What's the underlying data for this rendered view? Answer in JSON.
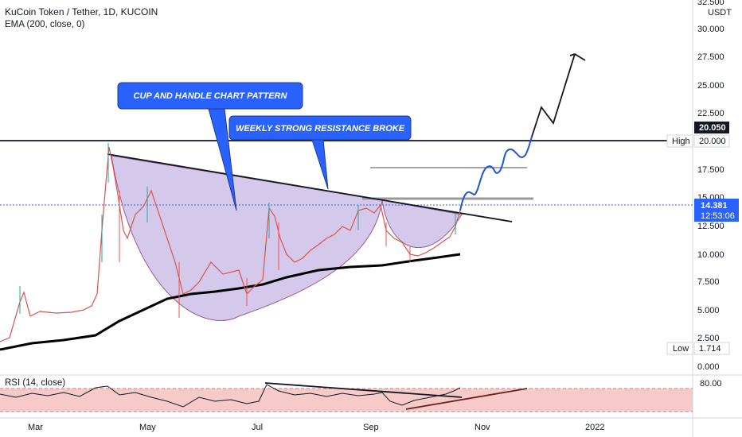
{
  "header": {
    "symbol_line": "KuCoin Token / Tether, 1D, KUCOIN",
    "indicator_line": "EMA (200, close, 0)"
  },
  "rsi_label": "RSI (14, close)",
  "annotations": {
    "cup_handle": "CUP AND HANDLE CHART PATTERN",
    "resistance": "WEEKLY STRONG RESISTANCE BROKE"
  },
  "price_scale": {
    "currency": "USDT",
    "top_value": "32.500",
    "ticks": [
      "30.000",
      "27.500",
      "25.000",
      "22.500",
      "17.500",
      "15.000",
      "12.500",
      "10.000",
      "7.500",
      "5.000",
      "2.500",
      "0.000"
    ],
    "rsi_ticks": [
      "80.00"
    ]
  },
  "tags": {
    "high_label": "High",
    "high_value": "20.000",
    "resistance_value": "20.050",
    "current_price": "14.381",
    "countdown": "12:53:06",
    "low_label": "Low",
    "low_value": "1.714"
  },
  "time_axis": [
    "Mar",
    "May",
    "Jul",
    "Sep",
    "Nov",
    "2022"
  ],
  "colors": {
    "up": "#26a69a",
    "down": "#ef5350",
    "cup_fill": "#b39ddb",
    "callout_bg": "#2962ff",
    "projection": "#1e53e5",
    "rsi_band": "#f2b8b5",
    "current_price_bg": "#2962ff"
  },
  "chart_data": {
    "type": "line",
    "title": "KuCoin Token / Tether, 1D, KUCOIN",
    "xlabel": "",
    "ylabel": "USDT",
    "ylim": [
      0,
      32.5
    ],
    "x_ticks": [
      "Mar",
      "May",
      "Jul",
      "Sep",
      "Nov",
      "2022"
    ],
    "series": [
      {
        "name": "KuCoin Token / Tether",
        "x": [
          "2021-02-12",
          "2021-02-20",
          "2021-03-01",
          "2021-03-10",
          "2021-03-20",
          "2021-03-30",
          "2021-04-05",
          "2021-04-08",
          "2021-04-15",
          "2021-04-25",
          "2021-05-05",
          "2021-05-12",
          "2021-05-19",
          "2021-05-25",
          "2021-06-05",
          "2021-06-15",
          "2021-06-22",
          "2021-06-30",
          "2021-07-05",
          "2021-07-08",
          "2021-07-12",
          "2021-07-20",
          "2021-08-01",
          "2021-08-15",
          "2021-08-25",
          "2021-09-05",
          "2021-09-08",
          "2021-09-15",
          "2021-09-20",
          "2021-09-25",
          "2021-10-01",
          "2021-10-05",
          "2021-10-08"
        ],
        "y": [
          1.8,
          2.4,
          6.5,
          4.2,
          4.5,
          4.7,
          6.0,
          19.5,
          13.5,
          12.0,
          16.0,
          9.5,
          6.0,
          8.0,
          8.5,
          7.5,
          6.3,
          7.0,
          14.5,
          10.5,
          12.0,
          10.5,
          11.0,
          12.5,
          14.5,
          14.0,
          12.0,
          11.0,
          10.0,
          10.8,
          11.8,
          13.0,
          14.381
        ]
      },
      {
        "name": "EMA (200, close, 0)",
        "x": [
          "2021-02-12",
          "2021-03-10",
          "2021-04-05",
          "2021-05-05",
          "2021-06-05",
          "2021-07-05",
          "2021-08-05",
          "2021-09-05",
          "2021-10-08"
        ],
        "y": [
          1.5,
          2.2,
          3.5,
          5.5,
          6.4,
          7.2,
          8.5,
          9.3,
          10.0
        ]
      }
    ],
    "levels": [
      {
        "label": "High",
        "value": 20.0
      },
      {
        "label": "Low",
        "value": 1.714
      }
    ]
  }
}
